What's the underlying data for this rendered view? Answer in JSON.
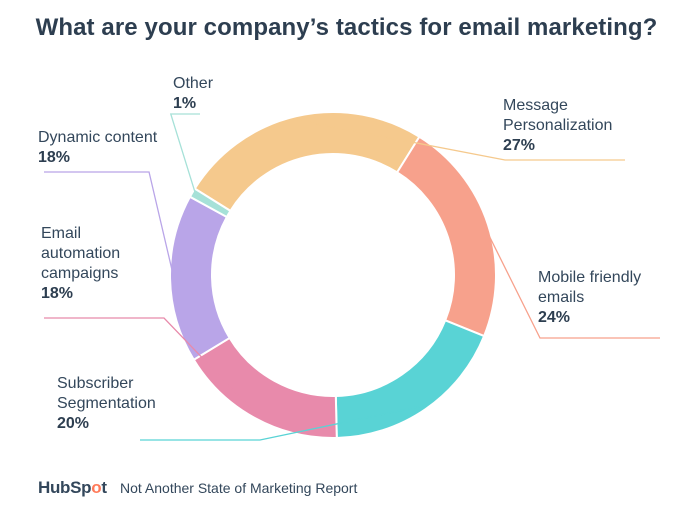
{
  "chart_data": {
    "type": "pie",
    "variant": "donut",
    "title": "What are your company’s tactics for email marketing?",
    "slices": [
      {
        "label": "Message\nPersonalization",
        "value": 27,
        "display": "27%",
        "color": "#f5c98d"
      },
      {
        "label": "Mobile friendly\nemails",
        "value": 24,
        "display": "24%",
        "color": "#f7a18c"
      },
      {
        "label": "Subscriber\nSegmentation",
        "value": 20,
        "display": "20%",
        "color": "#59d3d5"
      },
      {
        "label": "Email\nautomation\ncampaigns",
        "value": 18,
        "display": "18%",
        "color": "#e88aab"
      },
      {
        "label": "Dynamic content",
        "value": 18,
        "display": "18%",
        "color": "#b9a5e8"
      },
      {
        "label": "Other",
        "value": 1,
        "display": "1%",
        "color": "#a6e1d8"
      }
    ]
  },
  "footer": {
    "brand_prefix": "HubSp",
    "brand_o": "o",
    "brand_suffix": "t",
    "source": "Not Another State of Marketing Report"
  }
}
